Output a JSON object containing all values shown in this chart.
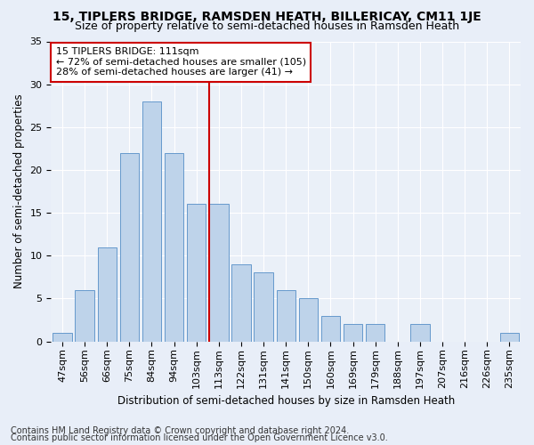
{
  "title": "15, TIPLERS BRIDGE, RAMSDEN HEATH, BILLERICAY, CM11 1JE",
  "subtitle": "Size of property relative to semi-detached houses in Ramsden Heath",
  "xlabel": "Distribution of semi-detached houses by size in Ramsden Heath",
  "ylabel": "Number of semi-detached properties",
  "categories": [
    "47sqm",
    "56sqm",
    "66sqm",
    "75sqm",
    "84sqm",
    "94sqm",
    "103sqm",
    "113sqm",
    "122sqm",
    "131sqm",
    "141sqm",
    "150sqm",
    "160sqm",
    "169sqm",
    "179sqm",
    "188sqm",
    "197sqm",
    "207sqm",
    "216sqm",
    "226sqm",
    "235sqm"
  ],
  "values": [
    1,
    6,
    11,
    22,
    28,
    22,
    16,
    16,
    9,
    8,
    6,
    5,
    3,
    2,
    2,
    0,
    2,
    0,
    0,
    0,
    1
  ],
  "bar_color": "#bed3ea",
  "bar_edge_color": "#6699cc",
  "vline_color": "#cc0000",
  "vline_x_idx": 7,
  "annotation_line1": "15 TIPLERS BRIDGE: 111sqm",
  "annotation_line2": "← 72% of semi-detached houses are smaller (105)",
  "annotation_line3": "28% of semi-detached houses are larger (41) →",
  "annotation_box_color": "white",
  "annotation_box_edge_color": "#cc0000",
  "ylim": [
    0,
    35
  ],
  "yticks": [
    0,
    5,
    10,
    15,
    20,
    25,
    30,
    35
  ],
  "footer1": "Contains HM Land Registry data © Crown copyright and database right 2024.",
  "footer2": "Contains public sector information licensed under the Open Government Licence v3.0.",
  "bg_color": "#e8eef8",
  "plot_bg_color": "#eaf0f8",
  "title_fontsize": 10,
  "subtitle_fontsize": 9,
  "label_fontsize": 8.5,
  "tick_fontsize": 8,
  "annotation_fontsize": 8,
  "footer_fontsize": 7
}
